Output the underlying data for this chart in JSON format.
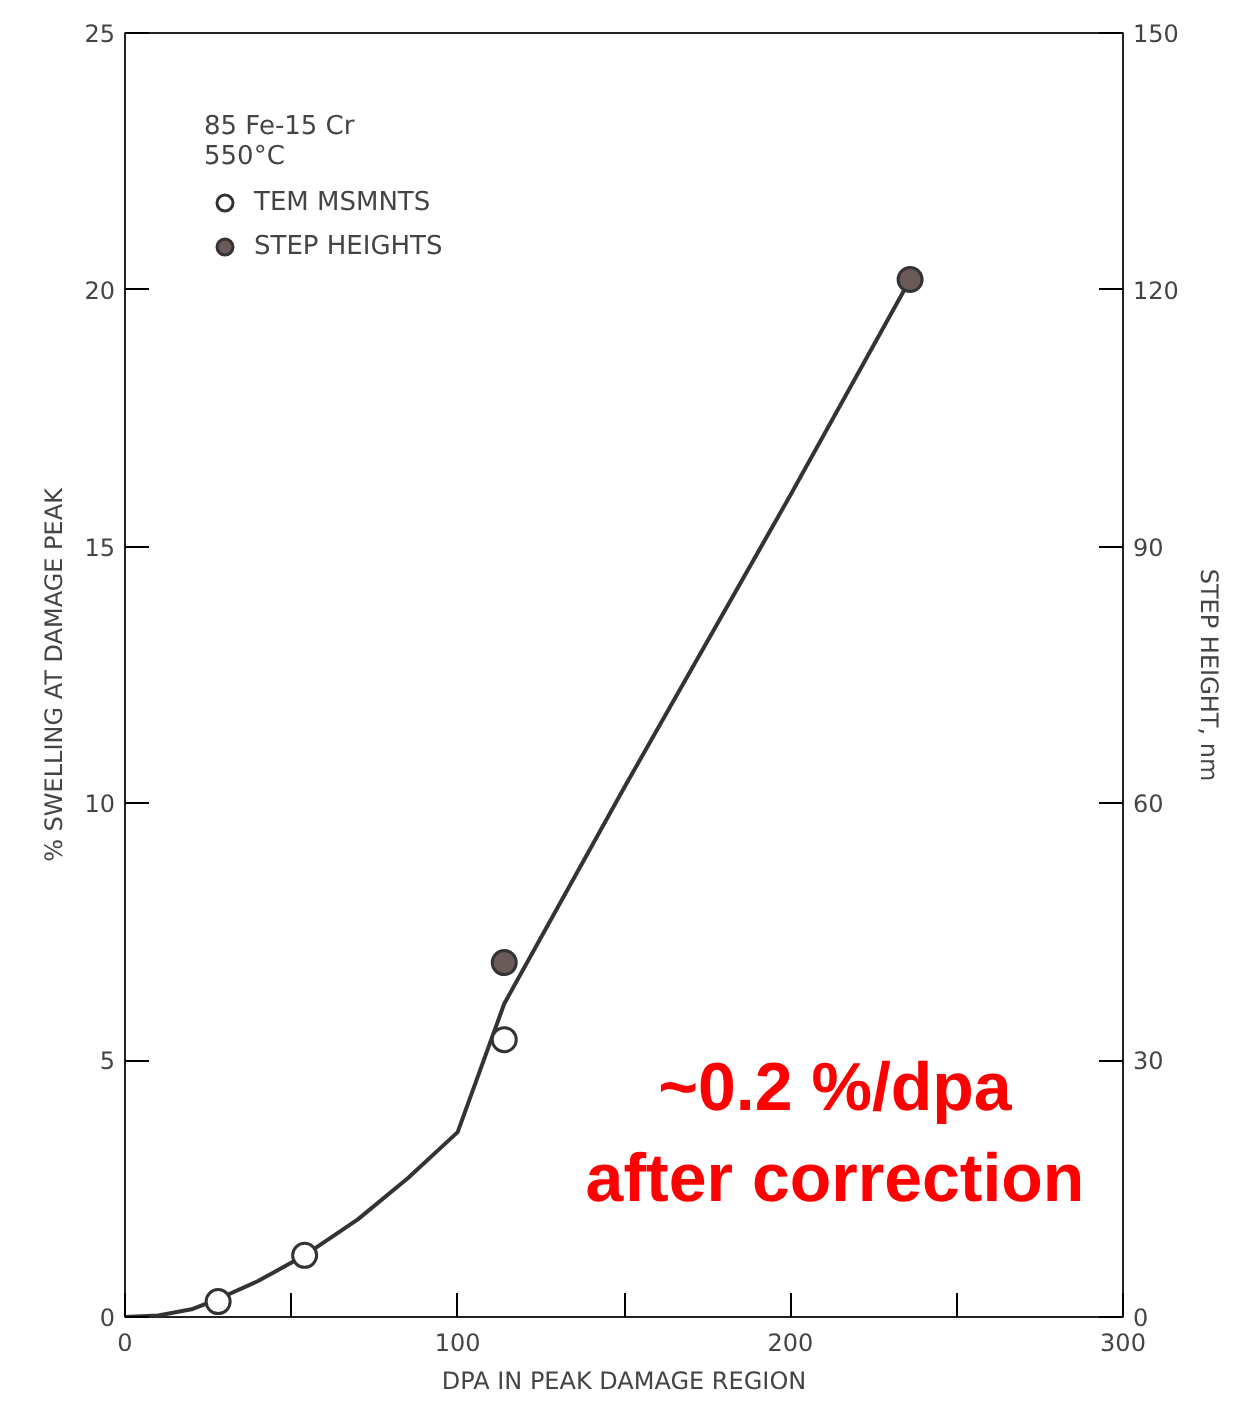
{
  "chart_data": {
    "type": "scatter",
    "xlabel": "DPA IN PEAK DAMAGE REGION",
    "ylabel": "% SWELLING AT DAMAGE PEAK",
    "y2label": "STEP HEIGHT, nm",
    "legend_title": "85 Fe-15 Cr\n550°C",
    "series": [
      {
        "type": "line",
        "color": "#333333",
        "x": [
          0,
          10,
          20,
          28,
          40,
          54,
          70,
          85,
          100,
          114,
          150,
          200,
          236
        ],
        "values": [
          0,
          0.03,
          0.15,
          0.35,
          0.7,
          1.2,
          1.9,
          2.7,
          3.6,
          6.1,
          10.3,
          16.0,
          20.2
        ],
        "marker": "none"
      },
      {
        "name": "TEM MSMNTS",
        "color": "#ffffff",
        "x": [
          28,
          54,
          114
        ],
        "values": [
          0.3,
          1.2,
          5.4
        ],
        "marker": "circle"
      },
      {
        "name": "STEP HEIGHTS",
        "color": "#6b5a5a",
        "x": [
          114,
          236
        ],
        "values": [
          6.9,
          20.2
        ],
        "marker": "circle"
      }
    ],
    "xlim": [
      0,
      300
    ],
    "xticks": [
      0,
      {
        "value": 50,
        "label": null
      },
      100,
      {
        "value": 150,
        "label": null
      },
      200,
      {
        "value": 250,
        "label": null
      },
      300
    ],
    "ylim": [
      0,
      25
    ],
    "yticks": [
      0,
      5,
      10,
      15,
      20,
      25
    ],
    "y2lim": [
      0,
      150
    ],
    "y2ticks": [
      0,
      30,
      60,
      90,
      120,
      150
    ],
    "legend": "top left",
    "grid": false,
    "annotations": [
      "~0.2 %/dpa\nafter correction"
    ]
  }
}
